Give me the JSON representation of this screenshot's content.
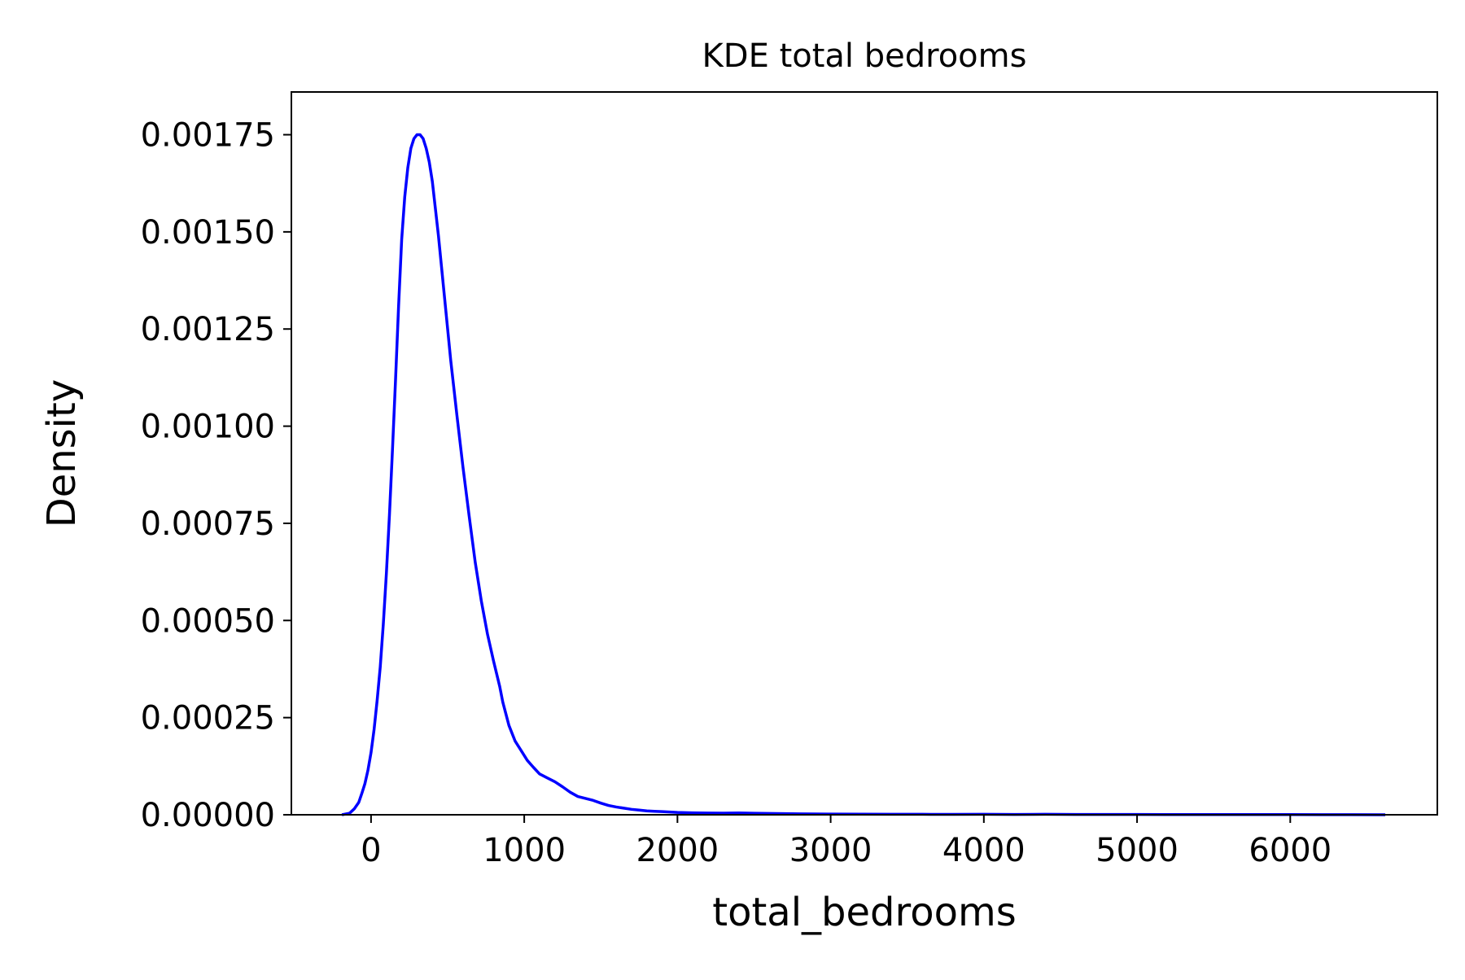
{
  "chart_data": {
    "type": "line",
    "title": "KDE total bedrooms",
    "xlabel": "total_bedrooms",
    "ylabel": "Density",
    "xlim": [
      -520,
      6960
    ],
    "ylim": [
      0,
      0.00186
    ],
    "xticks": [
      0,
      1000,
      2000,
      3000,
      4000,
      5000,
      6000
    ],
    "xtick_labels": [
      "0",
      "1000",
      "2000",
      "3000",
      "4000",
      "5000",
      "6000"
    ],
    "yticks": [
      0,
      0.00025,
      0.0005,
      0.00075,
      0.001,
      0.00125,
      0.0015,
      0.00175
    ],
    "ytick_labels": [
      "0.00000",
      "0.00025",
      "0.00050",
      "0.00075",
      "0.00100",
      "0.00125",
      "0.00150",
      "0.00175"
    ],
    "grid": false,
    "line_color": "#0000ff",
    "series": [
      {
        "name": "",
        "x": [
          -190,
          -140,
          -110,
          -80,
          -60,
          -40,
          -20,
          0,
          20,
          40,
          60,
          80,
          100,
          120,
          140,
          160,
          180,
          200,
          220,
          240,
          260,
          280,
          300,
          320,
          340,
          360,
          380,
          400,
          420,
          440,
          460,
          480,
          500,
          520,
          540,
          560,
          600,
          640,
          680,
          720,
          760,
          800,
          840,
          860,
          880,
          900,
          940,
          980,
          1020,
          1060,
          1100,
          1150,
          1200,
          1250,
          1300,
          1350,
          1400,
          1450,
          1500,
          1550,
          1600,
          1650,
          1700,
          1750,
          1800,
          1850,
          1900,
          1950,
          2000,
          2050,
          2100,
          2200,
          2300,
          2400,
          2500,
          2600,
          2700,
          2800,
          2900,
          3000,
          3200,
          3400,
          3600,
          3800,
          4000,
          4200,
          4400,
          4600,
          4800,
          5000,
          5200,
          5400,
          5600,
          5800,
          6000,
          6200,
          6400,
          6620
        ],
        "y": [
          0,
          4e-06,
          1.5e-05,
          3.2e-05,
          5.5e-05,
          8e-05,
          0.000115,
          0.00016,
          0.00022,
          0.000295,
          0.00038,
          0.00049,
          0.00062,
          0.00077,
          0.00094,
          0.00112,
          0.00131,
          0.00148,
          0.00159,
          0.001665,
          0.001715,
          0.00174,
          0.00175,
          0.00175,
          0.00174,
          0.001715,
          0.00168,
          0.00163,
          0.00156,
          0.00149,
          0.00141,
          0.00133,
          0.00125,
          0.00117,
          0.0011,
          0.00103,
          0.000895,
          0.00077,
          0.00065,
          0.00055,
          0.000465,
          0.000395,
          0.00033,
          0.00029,
          0.00026,
          0.00023,
          0.00019,
          0.000165,
          0.00014,
          0.000122,
          0.000105,
          9.5e-05,
          8.5e-05,
          7.2e-05,
          5.8e-05,
          4.7e-05,
          4.2e-05,
          3.7e-05,
          3e-05,
          2.4e-05,
          2e-05,
          1.7e-05,
          1.4e-05,
          1.2e-05,
          1e-05,
          9e-06,
          8e-06,
          7e-06,
          6e-06,
          5.5e-06,
          5e-06,
          4.5e-06,
          4.2e-06,
          4.8e-06,
          4e-06,
          3.3e-06,
          2.8e-06,
          2.4e-06,
          2e-06,
          1.8e-06,
          1.6e-06,
          1.4e-06,
          1.2e-06,
          1e-06,
          1.4e-06,
          8e-07,
          1.2e-06,
          7e-07,
          9e-07,
          8e-07,
          6e-07,
          6e-07,
          5e-07,
          5e-07,
          4e-07,
          3e-07,
          3e-07,
          1e-07
        ]
      }
    ]
  }
}
